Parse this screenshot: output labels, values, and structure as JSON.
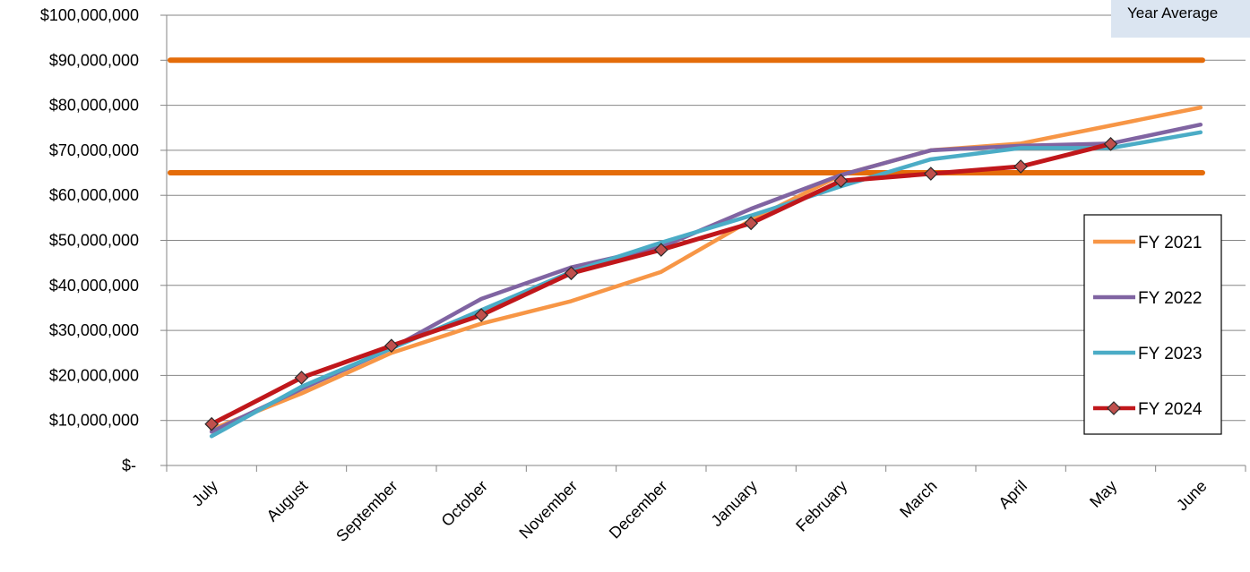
{
  "chart_data": {
    "type": "line",
    "title": "",
    "xlabel": "",
    "ylabel": "",
    "categories": [
      "July",
      "August",
      "September",
      "October",
      "November",
      "December",
      "January",
      "February",
      "March",
      "April",
      "May",
      "June"
    ],
    "ylim": [
      0,
      100000000
    ],
    "y_ticks": [
      0,
      10000000,
      20000000,
      30000000,
      40000000,
      50000000,
      60000000,
      70000000,
      80000000,
      90000000,
      100000000
    ],
    "y_tick_labels": [
      "$-",
      "$10,000,000",
      "$20,000,000",
      "$30,000,000",
      "$40,000,000",
      "$50,000,000",
      "$60,000,000",
      "$70,000,000",
      "$80,000,000",
      "$90,000,000",
      "$100,000,000"
    ],
    "grid": true,
    "legend_position": "right",
    "reference_lines": [
      {
        "value": 90000000,
        "color": "#e46c0a"
      },
      {
        "value": 65000000,
        "color": "#e46c0a"
      }
    ],
    "callout": {
      "text": "Year Average"
    },
    "series": [
      {
        "name": "FY 2021",
        "color": "#f79646",
        "marker": "none",
        "values": [
          8000000,
          16000000,
          25000000,
          31500000,
          36500000,
          43000000,
          54500000,
          64500000,
          70000000,
          71500000,
          75500000,
          79500000
        ]
      },
      {
        "name": "FY 2022",
        "color": "#8064a2",
        "marker": "none",
        "values": [
          7500000,
          17000000,
          26000000,
          37000000,
          44000000,
          48500000,
          57000000,
          64500000,
          70000000,
          71000000,
          71500000,
          75700000
        ]
      },
      {
        "name": "FY 2023",
        "color": "#4bacc6",
        "marker": "none",
        "values": [
          6500000,
          17500000,
          26000000,
          34500000,
          43000000,
          49500000,
          55500000,
          62000000,
          68000000,
          70500000,
          70500000,
          74000000
        ]
      },
      {
        "name": "FY 2024",
        "color": "#c0171b",
        "marker": "diamond",
        "marker_fill": "#c0504d",
        "values": [
          9200000,
          19500000,
          26600000,
          33400000,
          42700000,
          47900000,
          53800000,
          63200000,
          64800000,
          66400000,
          71400000,
          null
        ]
      }
    ]
  }
}
